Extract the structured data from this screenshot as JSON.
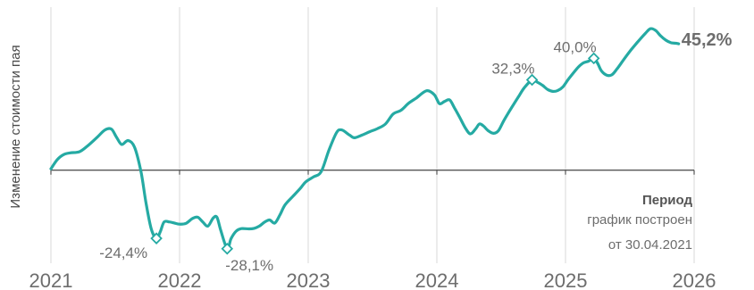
{
  "chart_data": {
    "type": "line",
    "ylabel": "Изменение стоимости пая",
    "xlabel": "Период",
    "note_lines": [
      "график построен",
      "от 30.04.2021"
    ],
    "x_ticks": [
      "2021",
      "2022",
      "2023",
      "2024",
      "2025",
      "2026"
    ],
    "x_range": [
      2021.0,
      2026.0
    ],
    "ylim": [
      -32,
      58
    ],
    "grid": "vertical",
    "line_color": "#25aaa3",
    "baseline_color": "#555555",
    "series": [
      {
        "points": [
          [
            2021.0,
            0.5
          ],
          [
            2021.05,
            3.8
          ],
          [
            2021.1,
            5.6
          ],
          [
            2021.15,
            6.2
          ],
          [
            2021.22,
            6.6
          ],
          [
            2021.28,
            8.5
          ],
          [
            2021.36,
            11.8
          ],
          [
            2021.42,
            14.4
          ],
          [
            2021.47,
            14.7
          ],
          [
            2021.51,
            11.8
          ],
          [
            2021.55,
            9.2
          ],
          [
            2021.6,
            10.6
          ],
          [
            2021.65,
            8.2
          ],
          [
            2021.7,
            -0.5
          ],
          [
            2021.74,
            -12.0
          ],
          [
            2021.78,
            -21.0
          ],
          [
            2021.82,
            -24.4
          ],
          [
            2021.85,
            -22.0
          ],
          [
            2021.88,
            -18.5
          ],
          [
            2021.92,
            -18.5
          ],
          [
            2021.96,
            -18.9
          ],
          [
            2022.0,
            -19.3
          ],
          [
            2022.05,
            -19.0
          ],
          [
            2022.1,
            -17.3
          ],
          [
            2022.14,
            -16.8
          ],
          [
            2022.18,
            -18.5
          ],
          [
            2022.22,
            -20.0
          ],
          [
            2022.26,
            -17.2
          ],
          [
            2022.29,
            -16.8
          ],
          [
            2022.32,
            -21.5
          ],
          [
            2022.37,
            -28.1
          ],
          [
            2022.4,
            -24.5
          ],
          [
            2022.44,
            -21.8
          ],
          [
            2022.48,
            -20.9
          ],
          [
            2022.54,
            -21.0
          ],
          [
            2022.58,
            -20.8
          ],
          [
            2022.62,
            -20.0
          ],
          [
            2022.66,
            -18.6
          ],
          [
            2022.7,
            -17.8
          ],
          [
            2022.74,
            -18.9
          ],
          [
            2022.78,
            -16.0
          ],
          [
            2022.82,
            -12.4
          ],
          [
            2022.88,
            -9.4
          ],
          [
            2022.94,
            -6.4
          ],
          [
            2022.98,
            -4.2
          ],
          [
            2023.04,
            -2.4
          ],
          [
            2023.1,
            -0.6
          ],
          [
            2023.16,
            7.0
          ],
          [
            2023.22,
            13.4
          ],
          [
            2023.26,
            14.4
          ],
          [
            2023.32,
            12.6
          ],
          [
            2023.36,
            11.6
          ],
          [
            2023.42,
            12.6
          ],
          [
            2023.48,
            13.8
          ],
          [
            2023.54,
            14.9
          ],
          [
            2023.6,
            16.5
          ],
          [
            2023.66,
            20.1
          ],
          [
            2023.72,
            21.4
          ],
          [
            2023.78,
            23.9
          ],
          [
            2023.84,
            25.8
          ],
          [
            2023.92,
            28.4
          ],
          [
            2023.98,
            27.0
          ],
          [
            2024.02,
            23.8
          ],
          [
            2024.06,
            24.6
          ],
          [
            2024.1,
            25.1
          ],
          [
            2024.14,
            22.0
          ],
          [
            2024.18,
            18.7
          ],
          [
            2024.22,
            15.2
          ],
          [
            2024.26,
            13.0
          ],
          [
            2024.3,
            14.7
          ],
          [
            2024.33,
            16.5
          ],
          [
            2024.36,
            15.9
          ],
          [
            2024.4,
            14.1
          ],
          [
            2024.44,
            13.2
          ],
          [
            2024.48,
            14.2
          ],
          [
            2024.52,
            17.7
          ],
          [
            2024.58,
            22.3
          ],
          [
            2024.64,
            26.7
          ],
          [
            2024.68,
            29.5
          ],
          [
            2024.74,
            32.3
          ],
          [
            2024.78,
            31.5
          ],
          [
            2024.82,
            30.4
          ],
          [
            2024.86,
            28.9
          ],
          [
            2024.9,
            28.2
          ],
          [
            2024.94,
            28.5
          ],
          [
            2024.98,
            29.8
          ],
          [
            2025.02,
            32.4
          ],
          [
            2025.06,
            34.7
          ],
          [
            2025.1,
            36.9
          ],
          [
            2025.14,
            38.4
          ],
          [
            2025.18,
            39.0
          ],
          [
            2025.22,
            40.0
          ],
          [
            2025.25,
            38.2
          ],
          [
            2025.28,
            35.5
          ],
          [
            2025.32,
            34.0
          ],
          [
            2025.36,
            34.1
          ],
          [
            2025.4,
            36.2
          ],
          [
            2025.45,
            39.4
          ],
          [
            2025.5,
            42.5
          ],
          [
            2025.56,
            45.8
          ],
          [
            2025.62,
            48.9
          ],
          [
            2025.66,
            50.6
          ],
          [
            2025.7,
            50.0
          ],
          [
            2025.74,
            48.0
          ],
          [
            2025.78,
            46.5
          ],
          [
            2025.82,
            45.6
          ],
          [
            2025.86,
            45.4
          ],
          [
            2025.88,
            45.2
          ]
        ]
      }
    ],
    "annotations": [
      {
        "x": 2021.82,
        "y": -24.4,
        "label": "-24,4%",
        "side": "below-left"
      },
      {
        "x": 2022.37,
        "y": -28.1,
        "label": "-28,1%",
        "side": "below-right"
      },
      {
        "x": 2024.74,
        "y": 32.3,
        "label": "32,3%",
        "side": "above-left"
      },
      {
        "x": 2025.22,
        "y": 40.0,
        "label": "40,0%",
        "side": "above-left"
      }
    ],
    "last_value": {
      "x": 2025.88,
      "y": 45.2,
      "label": "45,2%"
    }
  }
}
